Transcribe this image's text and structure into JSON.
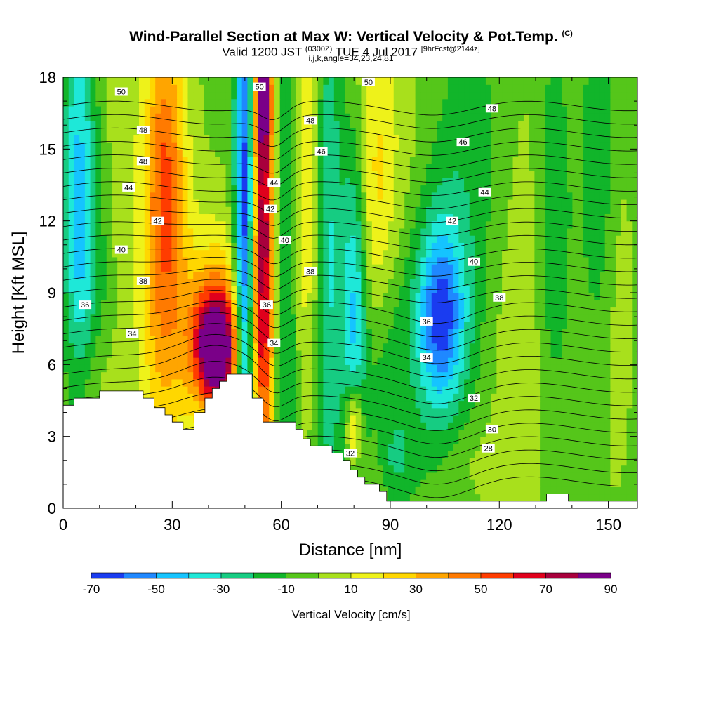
{
  "chart_data": {
    "type": "heatmap",
    "title": "Wind-Parallel Section at Max W: Vertical Velocity & Pot.Temp.",
    "title_mark": "(C)",
    "subtitle_valid": "Valid 1200 JST",
    "subtitle_utc": "(0300Z)",
    "subtitle_date": "TUE 4 Jul 2017",
    "subtitle_fcst": "[9hrFcst@2144z]",
    "subtitle_index": "i,j,k,angle=34,23,24,81",
    "xlabel": "Distance [nm]",
    "ylabel": "Height [Kft MSL]",
    "xlim": [
      0,
      158
    ],
    "ylim": [
      0,
      18
    ],
    "x_ticks": [
      "0",
      "30",
      "60",
      "90",
      "120",
      "150"
    ],
    "y_ticks": [
      "0",
      "3",
      "6",
      "9",
      "12",
      "15",
      "18"
    ],
    "colorbar_label": "Vertical Velocity [cm/s]",
    "colorbar_ticks": [
      "-70",
      "-50",
      "-30",
      "-10",
      "10",
      "30",
      "50",
      "70",
      "90"
    ],
    "colorbar_levels": [
      -70,
      -60,
      -50,
      -40,
      -30,
      -20,
      -10,
      0,
      10,
      20,
      30,
      40,
      50,
      60,
      70,
      80,
      90
    ],
    "colorbar_colors": [
      "#1a3cf0",
      "#1f88ff",
      "#15c4ff",
      "#1ee8d8",
      "#16cc82",
      "#11b52a",
      "#55c61a",
      "#a8e01c",
      "#eef21a",
      "#ffd700",
      "#ffa500",
      "#ff7a00",
      "#ff3c00",
      "#e0001c",
      "#a8003c",
      "#7a0088"
    ],
    "contour_variable": "Potential temperature (C)",
    "contour_labels": [
      {
        "text": "50",
        "x": 16,
        "y": 17.4
      },
      {
        "text": "48",
        "x": 22,
        "y": 15.8
      },
      {
        "text": "48",
        "x": 22,
        "y": 14.5
      },
      {
        "text": "44",
        "x": 18,
        "y": 13.4
      },
      {
        "text": "42",
        "x": 26,
        "y": 12.0
      },
      {
        "text": "40",
        "x": 16,
        "y": 10.8
      },
      {
        "text": "38",
        "x": 22,
        "y": 9.5
      },
      {
        "text": "36",
        "x": 6,
        "y": 8.5
      },
      {
        "text": "34",
        "x": 19,
        "y": 7.3
      },
      {
        "text": "50",
        "x": 54,
        "y": 17.6
      },
      {
        "text": "50",
        "x": 84,
        "y": 17.8
      },
      {
        "text": "48",
        "x": 68,
        "y": 16.2
      },
      {
        "text": "46",
        "x": 71,
        "y": 14.9
      },
      {
        "text": "44",
        "x": 58,
        "y": 13.6
      },
      {
        "text": "42",
        "x": 57,
        "y": 12.5
      },
      {
        "text": "40",
        "x": 61,
        "y": 11.2
      },
      {
        "text": "38",
        "x": 68,
        "y": 9.9
      },
      {
        "text": "36",
        "x": 56,
        "y": 8.5
      },
      {
        "text": "34",
        "x": 58,
        "y": 6.9
      },
      {
        "text": "48",
        "x": 118,
        "y": 16.7
      },
      {
        "text": "46",
        "x": 110,
        "y": 15.3
      },
      {
        "text": "44",
        "x": 116,
        "y": 13.2
      },
      {
        "text": "42",
        "x": 107,
        "y": 12.0
      },
      {
        "text": "40",
        "x": 113,
        "y": 10.3
      },
      {
        "text": "38",
        "x": 120,
        "y": 8.8
      },
      {
        "text": "36",
        "x": 100,
        "y": 7.8
      },
      {
        "text": "34",
        "x": 100,
        "y": 6.3
      },
      {
        "text": "32",
        "x": 113,
        "y": 4.6
      },
      {
        "text": "30",
        "x": 118,
        "y": 3.3
      },
      {
        "text": "28",
        "x": 117,
        "y": 2.5
      },
      {
        "text": "32",
        "x": 79,
        "y": 2.3
      }
    ],
    "terrain_profile": [
      [
        0,
        4.3
      ],
      [
        3,
        4.3
      ],
      [
        3,
        4.6
      ],
      [
        10,
        4.6
      ],
      [
        10,
        4.9
      ],
      [
        22,
        4.9
      ],
      [
        22,
        4.6
      ],
      [
        25,
        4.6
      ],
      [
        25,
        4.2
      ],
      [
        28,
        4.2
      ],
      [
        28,
        3.9
      ],
      [
        30,
        3.9
      ],
      [
        30,
        3.6
      ],
      [
        33,
        3.6
      ],
      [
        33,
        3.3
      ],
      [
        36,
        3.3
      ],
      [
        36,
        4.0
      ],
      [
        39,
        4.0
      ],
      [
        39,
        4.6
      ],
      [
        41,
        4.6
      ],
      [
        41,
        5.0
      ],
      [
        43,
        5.0
      ],
      [
        43,
        5.3
      ],
      [
        45,
        5.3
      ],
      [
        45,
        5.6
      ],
      [
        52,
        5.6
      ],
      [
        52,
        4.6
      ],
      [
        55,
        4.6
      ],
      [
        55,
        3.6
      ],
      [
        64,
        3.6
      ],
      [
        64,
        3.3
      ],
      [
        66,
        3.3
      ],
      [
        66,
        2.9
      ],
      [
        68,
        2.9
      ],
      [
        68,
        2.6
      ],
      [
        74,
        2.6
      ],
      [
        74,
        2.3
      ],
      [
        77,
        2.3
      ],
      [
        77,
        2.0
      ],
      [
        79,
        2.0
      ],
      [
        79,
        1.6
      ],
      [
        81,
        1.6
      ],
      [
        81,
        1.3
      ],
      [
        83,
        1.3
      ],
      [
        83,
        1.0
      ],
      [
        87,
        1.0
      ],
      [
        87,
        0.7
      ],
      [
        89,
        0.7
      ],
      [
        89,
        0.3
      ],
      [
        133,
        0.3
      ],
      [
        133,
        0.6
      ],
      [
        139,
        0.6
      ],
      [
        139,
        0.3
      ],
      [
        158,
        0.3
      ]
    ],
    "field_features": [
      {
        "x": 27,
        "y": 6,
        "sx": 5,
        "sy": 7,
        "w": 20
      },
      {
        "x": 28,
        "y": 14,
        "sx": 4,
        "sy": 5,
        "w": 45
      },
      {
        "x": 42,
        "y": 6.7,
        "sx": 4,
        "sy": 1.6,
        "w": 85
      },
      {
        "x": 42,
        "y": 7.5,
        "sx": 7,
        "sy": 3,
        "w": 38
      },
      {
        "x": 50,
        "y": 10,
        "sx": 2,
        "sy": 10,
        "w": -75
      },
      {
        "x": 55,
        "y": 12,
        "sx": 2.3,
        "sy": 8,
        "w": 80
      },
      {
        "x": 55,
        "y": 17.2,
        "sx": 1.6,
        "sy": 1.5,
        "w": 40
      },
      {
        "x": 61,
        "y": 11,
        "sx": 2.5,
        "sy": 10,
        "w": -25
      },
      {
        "x": 67,
        "y": 13.5,
        "sx": 3,
        "sy": 6,
        "w": 22
      },
      {
        "x": 73,
        "y": 11,
        "sx": 2.5,
        "sy": 9,
        "w": -30
      },
      {
        "x": 80,
        "y": 8.5,
        "sx": 2.5,
        "sy": 5,
        "w": -40
      },
      {
        "x": 80,
        "y": 3.4,
        "sx": 1.6,
        "sy": 1.3,
        "w": 45
      },
      {
        "x": 86,
        "y": 13,
        "sx": 4,
        "sy": 6,
        "w": 22
      },
      {
        "x": 88,
        "y": 6,
        "sx": 5,
        "sy": 3,
        "w": -18
      },
      {
        "x": 104,
        "y": 8,
        "sx": 4.5,
        "sy": 2.5,
        "w": -45
      },
      {
        "x": 104,
        "y": 9,
        "sx": 7,
        "sy": 6,
        "w": -22
      },
      {
        "x": 96,
        "y": 15,
        "sx": 7,
        "sy": 4,
        "w": 9
      },
      {
        "x": 125,
        "y": 9,
        "sx": 6,
        "sy": 7,
        "w": 10
      },
      {
        "x": 135,
        "y": 12,
        "sx": 3,
        "sy": 5,
        "w": -20
      },
      {
        "x": 148,
        "y": 14,
        "sx": 4,
        "sy": 5,
        "w": -18
      },
      {
        "x": 152,
        "y": 11,
        "sx": 3,
        "sy": 6,
        "w": 10
      },
      {
        "x": 4,
        "y": 13,
        "sx": 3,
        "sy": 6,
        "w": -38
      },
      {
        "x": 9,
        "y": 11,
        "sx": 4,
        "sy": 5,
        "w": -15
      },
      {
        "x": 14,
        "y": 14,
        "sx": 4,
        "sy": 5,
        "w": 10
      },
      {
        "x": 110,
        "y": 2,
        "sx": 6,
        "sy": 1.5,
        "w": 8
      },
      {
        "x": 92,
        "y": 2,
        "sx": 3,
        "sy": 1.2,
        "w": -15
      },
      {
        "x": 8,
        "y": 5.5,
        "sx": 5,
        "sy": 1.5,
        "w": 10
      },
      {
        "x": 116,
        "y": 15,
        "sx": 7,
        "sy": 5,
        "w": -10
      }
    ]
  }
}
